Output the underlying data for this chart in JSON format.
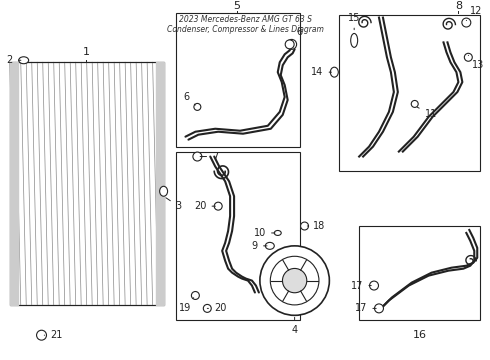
{
  "title": "2023 Mercedes-Benz AMG GT 63 S\nCondenser, Compressor & Lines Diagram",
  "bg_color": "#ffffff",
  "line_color": "#222222",
  "box_color": "#dddddd",
  "label_color": "#111111",
  "fig_width": 4.9,
  "fig_height": 3.6,
  "dpi": 100
}
